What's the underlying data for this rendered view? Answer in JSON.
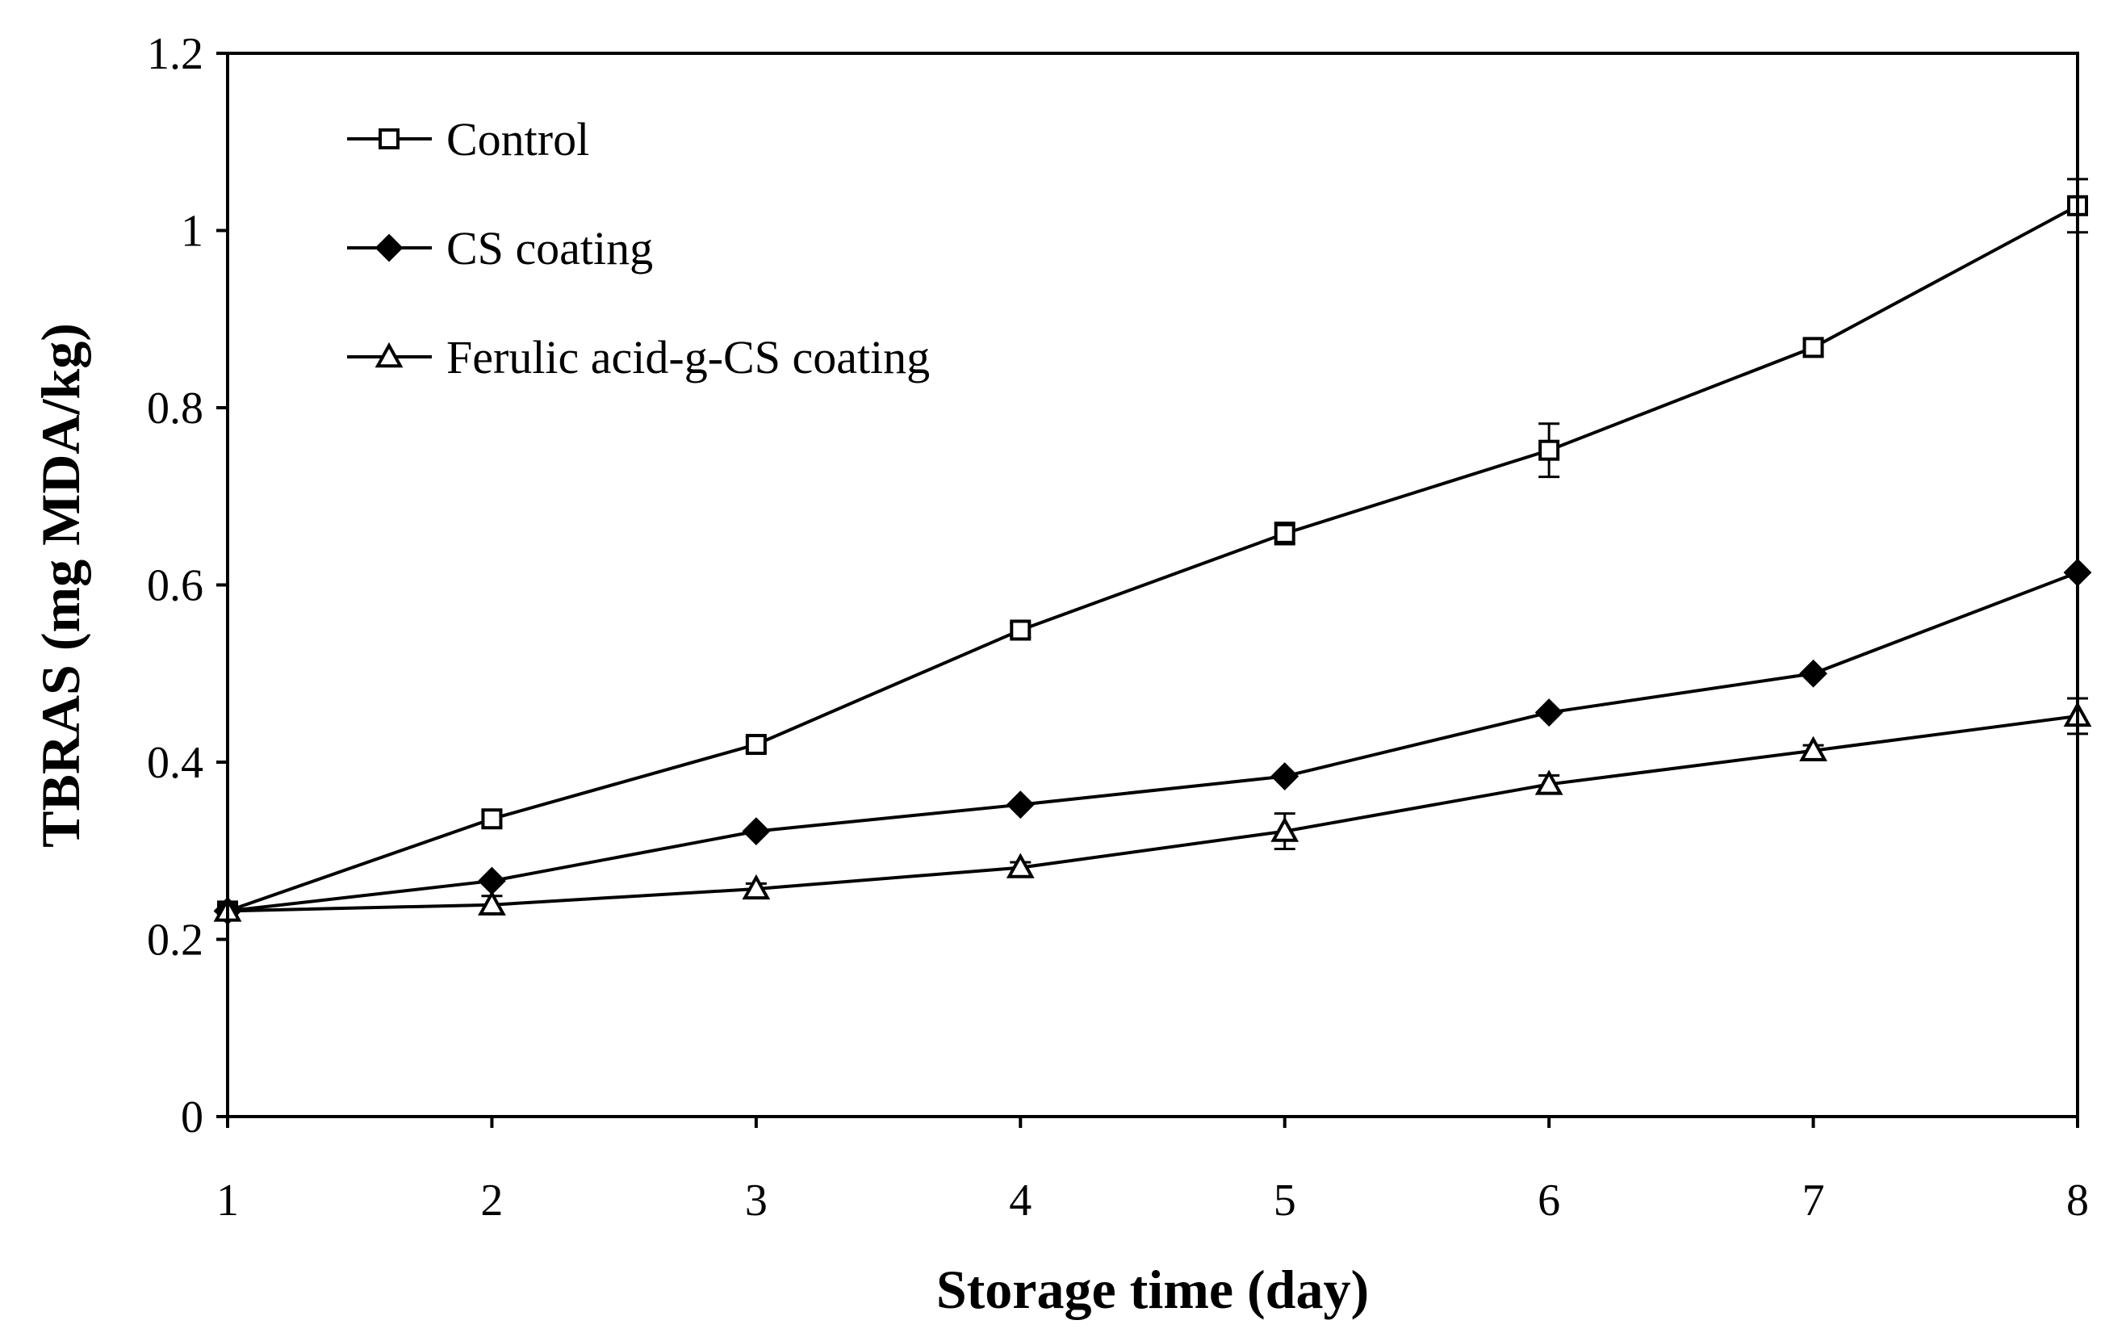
{
  "chart_data": {
    "type": "line",
    "title": "",
    "xlabel": "Storage time (day)",
    "ylabel": "TBRAS (mg MDA/kg)",
    "x": [
      1,
      2,
      3,
      4,
      5,
      6,
      7,
      8
    ],
    "xlim": [
      1,
      8
    ],
    "ylim": [
      0,
      1.2
    ],
    "x_ticks": [
      "1",
      "2",
      "3",
      "4",
      "5",
      "6",
      "7",
      "8"
    ],
    "y_ticks": [
      "0",
      "0.2",
      "0.4",
      "0.6",
      "0.8",
      "1",
      "1.2"
    ],
    "y_tick_values": [
      0,
      0.2,
      0.4,
      0.6,
      0.8,
      1.0,
      1.2
    ],
    "grid": false,
    "legend_position": "top-left",
    "series": [
      {
        "name": "Control",
        "marker": "open-square",
        "values": [
          0.232,
          0.336,
          0.42,
          0.549,
          0.658,
          0.752,
          0.868,
          1.028
        ],
        "errors": [
          0.01,
          0.008,
          0.008,
          0.008,
          0.012,
          0.03,
          0.01,
          0.03
        ]
      },
      {
        "name": "CS coating",
        "marker": "filled-diamond",
        "values": [
          0.232,
          0.266,
          0.322,
          0.352,
          0.384,
          0.456,
          0.5,
          0.614
        ]
      },
      {
        "name": "Ferulic acid-g-CS coating",
        "marker": "open-triangle",
        "values": [
          0.232,
          0.239,
          0.257,
          0.281,
          0.322,
          0.375,
          0.413,
          0.452
        ],
        "errors": [
          0.01,
          0.01,
          0.006,
          0.006,
          0.02,
          0.01,
          0.006,
          0.02
        ]
      }
    ]
  }
}
